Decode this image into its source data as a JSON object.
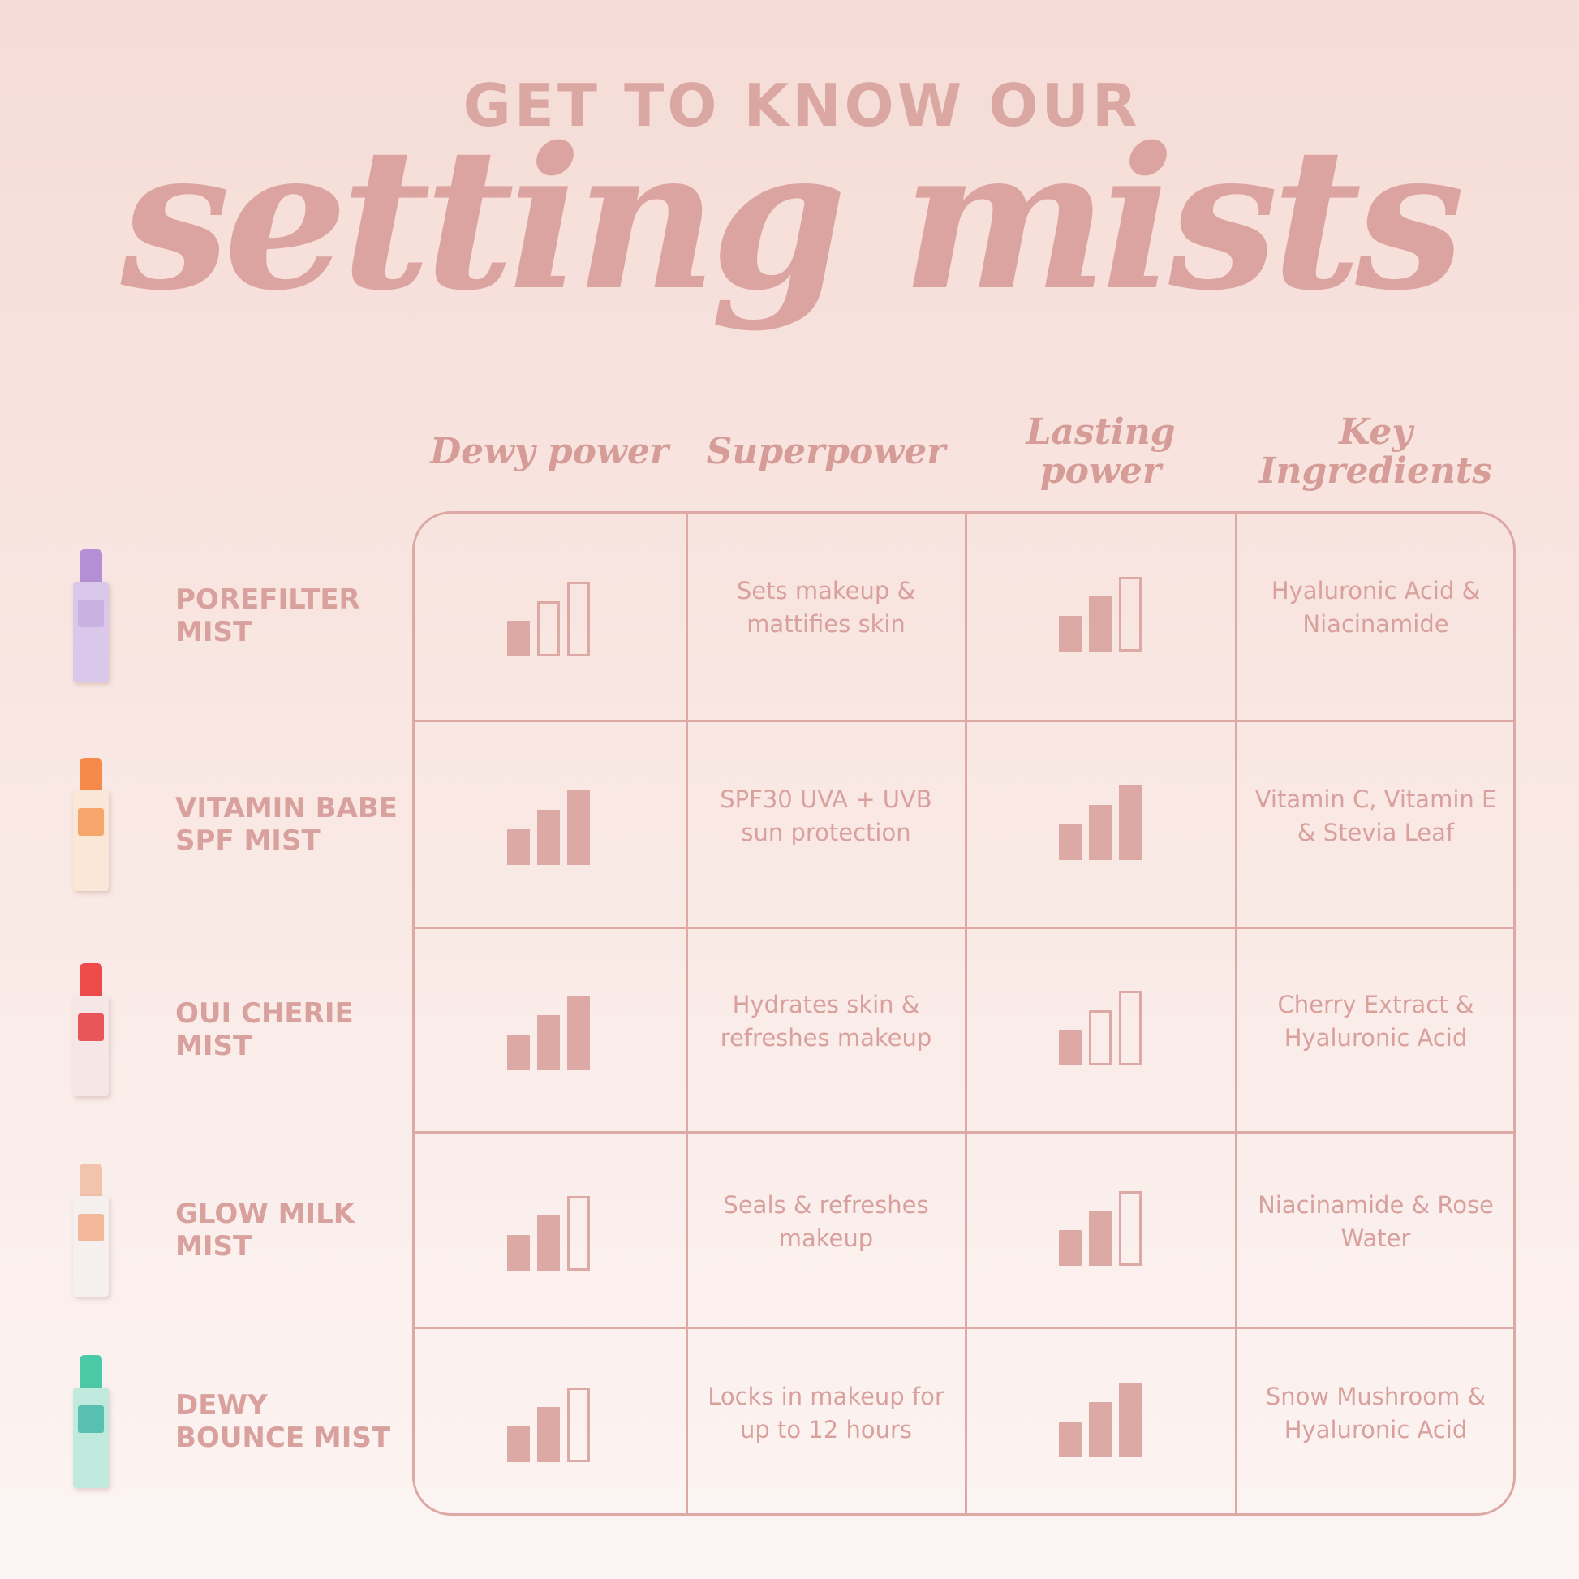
{
  "header": {
    "title_top": "GET TO KNOW OUR",
    "title_script": "setting mists"
  },
  "columns": [
    {
      "label": "Dewy power"
    },
    {
      "label": "Superpower"
    },
    {
      "label": "Lasting power"
    },
    {
      "label": "Key Ingredients"
    }
  ],
  "rating_scale_max": 3,
  "rows": [
    {
      "name_line1": "POREFILTER",
      "name_line2": "MIST",
      "bottle_colors": {
        "cap": "#b58fd6",
        "body": "#d9c8ea",
        "label": "#c9b2e2"
      },
      "dewy": 1,
      "superpower": "Sets makeup & mattifies skin",
      "lasting": 2,
      "ingredients": "Hyaluronic Acid & Niacinamide"
    },
    {
      "name_line1": "VITAMIN BABE",
      "name_line2": "SPF MIST",
      "bottle_colors": {
        "cap": "#f58a4b",
        "body": "#fbe7d7",
        "label": "#f7a66b"
      },
      "dewy": 3,
      "superpower": "SPF30 UVA + UVB sun protection",
      "lasting": 3,
      "ingredients": "Vitamin C, Vitamin E & Stevia Leaf"
    },
    {
      "name_line1": "OUI CHERIE",
      "name_line2": "MIST",
      "bottle_colors": {
        "cap": "#ee4b4b",
        "body": "#f6e6e6",
        "label": "#e8555a"
      },
      "dewy": 3,
      "superpower": "Hydrates skin & refreshes makeup",
      "lasting": 1,
      "ingredients": "Cherry Extract & Hyaluronic Acid"
    },
    {
      "name_line1": "GLOW MILK",
      "name_line2": "MIST",
      "bottle_colors": {
        "cap": "#f2c3ad",
        "body": "#f5f0ee",
        "label": "#f3b79a"
      },
      "dewy": 2,
      "superpower": "Seals & refreshes makeup",
      "lasting": 2,
      "ingredients": "Niacinamide & Rose Water"
    },
    {
      "name_line1": "DEWY",
      "name_line2": "BOUNCE MIST",
      "bottle_colors": {
        "cap": "#4cc9a6",
        "body": "#bfeadd",
        "label": "#57c0b0"
      },
      "dewy": 2,
      "superpower": "Locks in makeup for up to 12 hours",
      "lasting": 3,
      "ingredients": "Snow Mushroom & Hyaluronic Acid"
    }
  ]
}
